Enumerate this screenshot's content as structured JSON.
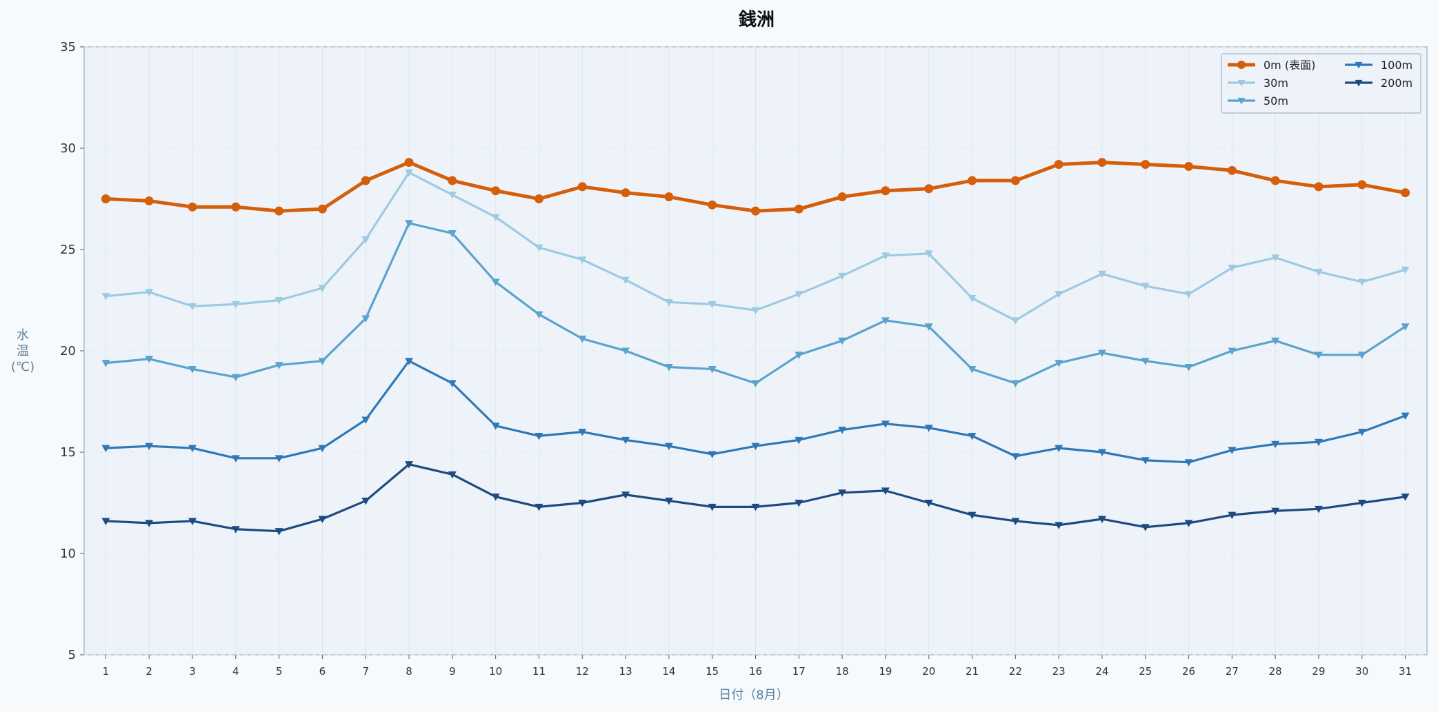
{
  "chart_data": {
    "type": "line",
    "title": "銭洲",
    "xlabel": "日付（8月）",
    "ylabel": "水温(℃)",
    "ylabel_chars": [
      "水",
      "温",
      "(℃)"
    ],
    "ylim": [
      5,
      35
    ],
    "yticks": [
      5,
      10,
      15,
      20,
      25,
      30,
      35
    ],
    "xlim": [
      0.5,
      31.5
    ],
    "grid": true,
    "legend_position": "top-right",
    "x": [
      1,
      2,
      3,
      4,
      5,
      6,
      7,
      8,
      9,
      10,
      11,
      12,
      13,
      14,
      15,
      16,
      17,
      18,
      19,
      20,
      21,
      22,
      23,
      24,
      25,
      26,
      27,
      28,
      29,
      30,
      31
    ],
    "series": [
      {
        "name": "0m (表面)",
        "color": "#d45e0a",
        "marker": "circle",
        "values": [
          27.5,
          27.4,
          27.1,
          27.1,
          26.9,
          27.0,
          28.4,
          29.3,
          28.4,
          27.9,
          27.5,
          28.1,
          27.8,
          27.6,
          27.2,
          26.9,
          27.0,
          27.6,
          27.9,
          28.0,
          28.4,
          28.4,
          29.2,
          29.3,
          29.2,
          29.1,
          28.9,
          28.4,
          28.1,
          28.2,
          27.8
        ]
      },
      {
        "name": "30m",
        "color": "#9ecae1",
        "marker": "triangle-down",
        "values": [
          22.7,
          22.9,
          22.2,
          22.3,
          22.5,
          23.1,
          25.5,
          28.8,
          27.7,
          26.6,
          25.1,
          24.5,
          23.5,
          22.4,
          22.3,
          22.0,
          22.8,
          23.7,
          24.7,
          24.8,
          22.6,
          21.5,
          22.8,
          23.8,
          23.2,
          22.8,
          24.1,
          24.6,
          23.9,
          23.4,
          24.0
        ]
      },
      {
        "name": "50m",
        "color": "#5ba3cc",
        "marker": "triangle-down",
        "values": [
          19.4,
          19.6,
          19.1,
          18.7,
          19.3,
          19.5,
          21.6,
          26.3,
          25.8,
          23.4,
          21.8,
          20.6,
          20.0,
          19.2,
          19.1,
          18.4,
          19.8,
          20.5,
          21.5,
          21.2,
          19.1,
          18.4,
          19.4,
          19.9,
          19.5,
          19.2,
          20.0,
          20.5,
          19.8,
          19.8,
          21.2
        ]
      },
      {
        "name": "100m",
        "color": "#2f78b7",
        "marker": "triangle-down",
        "values": [
          15.2,
          15.3,
          15.2,
          14.7,
          14.7,
          15.2,
          16.6,
          19.5,
          18.4,
          16.3,
          15.8,
          16.0,
          15.6,
          15.3,
          14.9,
          15.3,
          15.6,
          16.1,
          16.4,
          16.2,
          15.8,
          14.8,
          15.2,
          15.0,
          14.6,
          14.5,
          15.1,
          15.4,
          15.5,
          16.0,
          16.8
        ]
      },
      {
        "name": "200m",
        "color": "#1d4a80",
        "marker": "triangle-down",
        "values": [
          11.6,
          11.5,
          11.6,
          11.2,
          11.1,
          11.7,
          12.6,
          14.4,
          13.9,
          12.8,
          12.3,
          12.5,
          12.9,
          12.6,
          12.3,
          12.3,
          12.5,
          13.0,
          13.1,
          12.5,
          11.9,
          11.6,
          11.4,
          11.7,
          11.3,
          11.5,
          11.9,
          12.1,
          12.2,
          12.5,
          12.8
        ]
      }
    ]
  }
}
